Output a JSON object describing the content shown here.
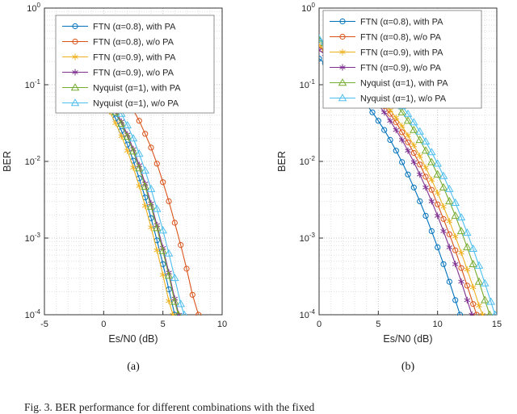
{
  "figure": {
    "caption": "Fig. 3.   BER performance for different combinations with the fixed",
    "background": "#ffffff"
  },
  "chart_data": [
    {
      "id": "a",
      "sublabel": "(a)",
      "type": "line",
      "x_scale": "linear",
      "y_scale": "log",
      "xlabel": "Es/N0 (dB)",
      "ylabel": "BER",
      "xlim": [
        -5,
        10
      ],
      "x_ticks": [
        -5,
        0,
        5,
        10
      ],
      "y_tick_exponents": [
        0,
        -1,
        -2,
        -3,
        -4
      ],
      "ylim": [
        0.0001,
        1
      ],
      "grid": "major+minor dotted",
      "legend_position": "inside-top",
      "legend_inset": [
        14,
        9
      ],
      "series": [
        {
          "name": "FTN (α=0.8), with PA",
          "color": "#0072BD",
          "marker": "circle",
          "x": [
            -1,
            -0.5,
            0,
            0.5,
            1,
            1.5,
            2,
            2.5,
            3,
            3.5,
            4,
            4.5,
            5,
            5.5,
            6
          ],
          "log10_ber": [
            -1.0,
            -1.08,
            -1.18,
            -1.3,
            -1.44,
            -1.6,
            -1.78,
            -1.99,
            -2.22,
            -2.47,
            -2.74,
            -3.03,
            -3.34,
            -3.67,
            -4.0
          ]
        },
        {
          "name": "FTN (α=0.8), w/o PA",
          "color": "#D95319",
          "marker": "circle",
          "x": [
            1,
            1.5,
            2,
            2.5,
            3,
            3.5,
            4,
            4.5,
            5,
            5.5,
            6,
            6.5,
            7,
            7.5,
            8
          ],
          "log10_ber": [
            -1.02,
            -1.1,
            -1.2,
            -1.33,
            -1.47,
            -1.64,
            -1.82,
            -2.03,
            -2.27,
            -2.52,
            -2.8,
            -3.09,
            -3.4,
            -3.74,
            -4.0
          ]
        },
        {
          "name": "FTN (α=0.9), with PA",
          "color": "#EDB120",
          "marker": "asterisk",
          "x": [
            -1,
            -0.5,
            0,
            0.5,
            1,
            1.5,
            2,
            2.5,
            3,
            3.5,
            4,
            4.5,
            5,
            5.5,
            5.85
          ],
          "log10_ber": [
            -1.03,
            -1.12,
            -1.23,
            -1.35,
            -1.5,
            -1.67,
            -1.86,
            -2.08,
            -2.32,
            -2.58,
            -2.86,
            -3.16,
            -3.48,
            -3.82,
            -4.0
          ]
        },
        {
          "name": "FTN (α=0.9), w/o PA",
          "color": "#7E2F8E",
          "marker": "asterisk",
          "x": [
            -0.5,
            0,
            0.5,
            1,
            1.5,
            2,
            2.5,
            3,
            3.5,
            4,
            4.5,
            5,
            5.5,
            6,
            6.35
          ],
          "log10_ber": [
            -1.02,
            -1.11,
            -1.21,
            -1.34,
            -1.48,
            -1.65,
            -1.84,
            -2.05,
            -2.29,
            -2.55,
            -2.83,
            -3.13,
            -3.45,
            -3.79,
            -4.0
          ]
        },
        {
          "name": "Nyquist (α=1), with PA",
          "color": "#77AC30",
          "marker": "triangle",
          "x": [
            -0.5,
            0,
            0.5,
            1,
            1.5,
            2,
            2.5,
            3,
            3.5,
            4,
            4.5,
            5,
            5.5,
            6,
            6.3
          ],
          "log10_ber": [
            -1.03,
            -1.12,
            -1.23,
            -1.36,
            -1.51,
            -1.68,
            -1.87,
            -2.09,
            -2.33,
            -2.59,
            -2.87,
            -3.17,
            -3.49,
            -3.83,
            -4.0
          ]
        },
        {
          "name": "Nyquist (α=1), w/o PA",
          "color": "#4DBEEE",
          "marker": "triangle",
          "x": [
            0,
            0.5,
            1,
            1.5,
            2,
            2.5,
            3,
            3.5,
            4,
            4.5,
            5,
            5.5,
            6,
            6.5,
            6.8
          ],
          "log10_ber": [
            -1.04,
            -1.13,
            -1.25,
            -1.38,
            -1.53,
            -1.7,
            -1.9,
            -2.12,
            -2.36,
            -2.62,
            -2.9,
            -3.2,
            -3.52,
            -3.86,
            -4.0
          ]
        }
      ]
    },
    {
      "id": "b",
      "sublabel": "(b)",
      "type": "line",
      "x_scale": "linear",
      "y_scale": "log",
      "xlabel": "Es/N0 (dB)",
      "ylabel": "BER",
      "xlim": [
        0,
        15
      ],
      "x_ticks": [
        0,
        5,
        10,
        15
      ],
      "y_tick_exponents": [
        0,
        -1,
        -2,
        -3,
        -4
      ],
      "ylim": [
        0.0001,
        1
      ],
      "grid": "major+minor dotted",
      "legend_position": "inside-top",
      "legend_inset": [
        5,
        3
      ],
      "series": [
        {
          "name": "FTN (α=0.8), with PA",
          "color": "#0072BD",
          "marker": "circle",
          "x": [
            0,
            0.5,
            1,
            1.5,
            2,
            2.5,
            3,
            3.5,
            4,
            4.5,
            5,
            5.5,
            6,
            6.5,
            7,
            7.5,
            8,
            8.5,
            9,
            9.5,
            10,
            10.5,
            11,
            11.5,
            11.9
          ],
          "log10_ber": [
            -0.66,
            -0.72,
            -0.78,
            -0.85,
            -0.92,
            -1.0,
            -1.08,
            -1.17,
            -1.26,
            -1.36,
            -1.47,
            -1.59,
            -1.72,
            -1.86,
            -2.01,
            -2.17,
            -2.34,
            -2.52,
            -2.71,
            -2.91,
            -3.12,
            -3.34,
            -3.57,
            -3.81,
            -4.0
          ]
        },
        {
          "name": "FTN (α=0.8), w/o PA",
          "color": "#D95319",
          "marker": "circle",
          "x": [
            0,
            0.5,
            1,
            1.5,
            2,
            2.5,
            3,
            3.5,
            4,
            4.5,
            5,
            5.5,
            6,
            6.5,
            7,
            7.5,
            8,
            8.5,
            9,
            9.5,
            10,
            10.5,
            11,
            11.5,
            12,
            12.5,
            13,
            13.3
          ],
          "log10_ber": [
            -0.51,
            -0.56,
            -0.61,
            -0.67,
            -0.73,
            -0.79,
            -0.86,
            -0.94,
            -1.02,
            -1.1,
            -1.19,
            -1.28,
            -1.38,
            -1.49,
            -1.62,
            -1.75,
            -1.89,
            -2.04,
            -2.2,
            -2.37,
            -2.56,
            -2.75,
            -2.95,
            -3.16,
            -3.39,
            -3.62,
            -3.86,
            -4.0
          ]
        },
        {
          "name": "FTN (α=0.9), with PA",
          "color": "#EDB120",
          "marker": "asterisk",
          "x": [
            0,
            0.5,
            1,
            1.5,
            2,
            2.5,
            3,
            3.5,
            4,
            4.5,
            5,
            5.5,
            6,
            6.5,
            7,
            7.5,
            8,
            8.5,
            9,
            9.5,
            10,
            10.5,
            11,
            11.5,
            12,
            12.5,
            13,
            13.5,
            13.8
          ],
          "log10_ber": [
            -0.5,
            -0.54,
            -0.59,
            -0.64,
            -0.7,
            -0.76,
            -0.83,
            -0.9,
            -0.98,
            -1.06,
            -1.15,
            -1.24,
            -1.33,
            -1.43,
            -1.54,
            -1.66,
            -1.79,
            -1.93,
            -2.08,
            -2.24,
            -2.41,
            -2.59,
            -2.78,
            -2.98,
            -3.19,
            -3.41,
            -3.64,
            -3.88,
            -4.0
          ]
        },
        {
          "name": "FTN (α=0.9), w/o PA",
          "color": "#7E2F8E",
          "marker": "asterisk",
          "x": [
            0,
            0.5,
            1,
            1.5,
            2,
            2.5,
            3,
            3.5,
            4,
            4.5,
            5,
            5.5,
            6,
            6.5,
            7,
            7.5,
            8,
            8.5,
            9,
            9.5,
            10,
            10.5,
            11,
            11.5,
            12,
            12.5,
            12.9
          ],
          "log10_ber": [
            -0.55,
            -0.6,
            -0.66,
            -0.72,
            -0.78,
            -0.85,
            -0.92,
            -1.0,
            -1.08,
            -1.17,
            -1.26,
            -1.36,
            -1.47,
            -1.59,
            -1.72,
            -1.86,
            -2.01,
            -2.17,
            -2.34,
            -2.52,
            -2.71,
            -2.91,
            -3.12,
            -3.34,
            -3.57,
            -3.81,
            -4.0
          ]
        },
        {
          "name": "Nyquist (α=1), with PA",
          "color": "#77AC30",
          "marker": "triangle",
          "x": [
            0,
            0.5,
            1,
            1.5,
            2,
            2.5,
            3,
            3.5,
            4,
            4.5,
            5,
            5.5,
            6,
            6.5,
            7,
            7.5,
            8,
            8.5,
            9,
            9.5,
            10,
            10.5,
            11,
            11.5,
            12,
            12.5,
            13,
            13.5,
            14,
            14.4
          ],
          "log10_ber": [
            -0.42,
            -0.46,
            -0.51,
            -0.55,
            -0.6,
            -0.66,
            -0.72,
            -0.78,
            -0.85,
            -0.92,
            -1.0,
            -1.08,
            -1.17,
            -1.26,
            -1.36,
            -1.47,
            -1.59,
            -1.72,
            -1.86,
            -2.01,
            -2.17,
            -2.34,
            -2.52,
            -2.71,
            -2.91,
            -3.12,
            -3.34,
            -3.57,
            -3.81,
            -4.0
          ]
        },
        {
          "name": "Nyquist (α=1), w/o PA",
          "color": "#4DBEEE",
          "marker": "triangle",
          "x": [
            0,
            0.5,
            1,
            1.5,
            2,
            2.5,
            3,
            3.5,
            4,
            4.5,
            5,
            5.5,
            6,
            6.5,
            7,
            7.5,
            8,
            8.5,
            9,
            9.5,
            10,
            10.5,
            11,
            11.5,
            12,
            12.5,
            13,
            13.5,
            14,
            14.5,
            14.85
          ],
          "log10_ber": [
            -0.4,
            -0.44,
            -0.48,
            -0.52,
            -0.57,
            -0.62,
            -0.68,
            -0.74,
            -0.8,
            -0.87,
            -0.94,
            -1.02,
            -1.1,
            -1.19,
            -1.28,
            -1.38,
            -1.49,
            -1.61,
            -1.74,
            -1.88,
            -2.03,
            -2.19,
            -2.36,
            -2.54,
            -2.73,
            -2.93,
            -3.14,
            -3.36,
            -3.59,
            -3.83,
            -4.0
          ]
        }
      ]
    }
  ]
}
